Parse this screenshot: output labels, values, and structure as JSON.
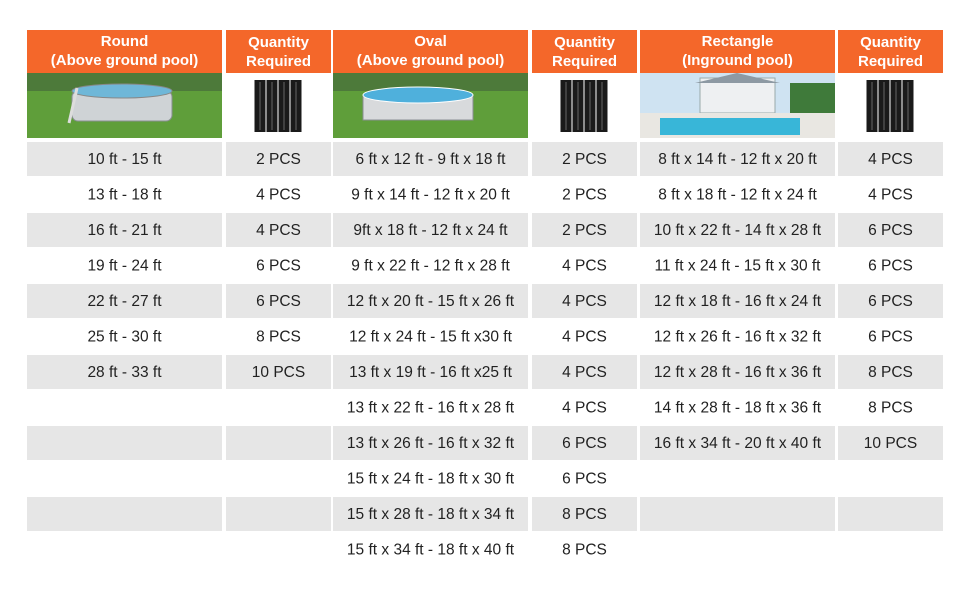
{
  "quantity_title": "Quantity",
  "quantity_subtitle": "Required",
  "sections": [
    {
      "title": "Round",
      "subtitle": "(Above ground pool)",
      "sizes": [
        "10 ft - 15 ft",
        "13 ft - 18 ft",
        "16 ft - 21 ft",
        "19 ft - 24 ft",
        "22 ft - 27 ft",
        "25 ft - 30 ft",
        "28 ft - 33 ft"
      ],
      "quantities": [
        "2 PCS",
        "4 PCS",
        "4 PCS",
        "6 PCS",
        "6 PCS",
        "8 PCS",
        "10 PCS"
      ]
    },
    {
      "title": "Oval",
      "subtitle": "(Above ground pool)",
      "sizes": [
        "6 ft x 12 ft - 9 ft x 18 ft",
        "9 ft x 14 ft - 12 ft x 20 ft",
        "9ft x 18 ft - 12 ft x 24 ft",
        "9 ft x 22 ft - 12 ft x 28 ft",
        "12 ft x 20 ft - 15 ft x 26 ft",
        "12 ft x 24 ft - 15 ft x30 ft",
        "13 ft x 19 ft - 16 ft x25 ft",
        "13 ft x 22 ft - 16 ft x 28 ft",
        "13 ft x 26 ft - 16 ft x 32 ft",
        "15 ft x 24 ft - 18 ft x 30 ft",
        "15 ft x 28 ft - 18 ft x 34 ft",
        "15 ft x 34 ft - 18 ft x 40 ft"
      ],
      "quantities": [
        "2 PCS",
        "2 PCS",
        "2 PCS",
        "4 PCS",
        "4 PCS",
        "4 PCS",
        "4 PCS",
        "4 PCS",
        "6 PCS",
        "6 PCS",
        "8 PCS",
        "8 PCS"
      ]
    },
    {
      "title": "Rectangle",
      "subtitle": "(Inground pool)",
      "sizes": [
        "8 ft x 14 ft - 12 ft x 20 ft",
        "8 ft x 18 ft - 12 ft x 24 ft",
        "10 ft x 22 ft - 14 ft x 28 ft",
        "11 ft x 24 ft - 15 ft x 30 ft",
        "12 ft x 18 ft - 16 ft x 24 ft",
        "12 ft x 26 ft - 16 ft x 32 ft",
        "12 ft x 28 ft - 16 ft x 36 ft",
        "14 ft x 28 ft - 18 ft x 36 ft",
        "16 ft x 34 ft - 20 ft x 40 ft"
      ],
      "quantities": [
        "4 PCS",
        "4 PCS",
        "6 PCS",
        "6 PCS",
        "6 PCS",
        "6 PCS",
        "8 PCS",
        "8 PCS",
        "10 PCS"
      ]
    }
  ]
}
